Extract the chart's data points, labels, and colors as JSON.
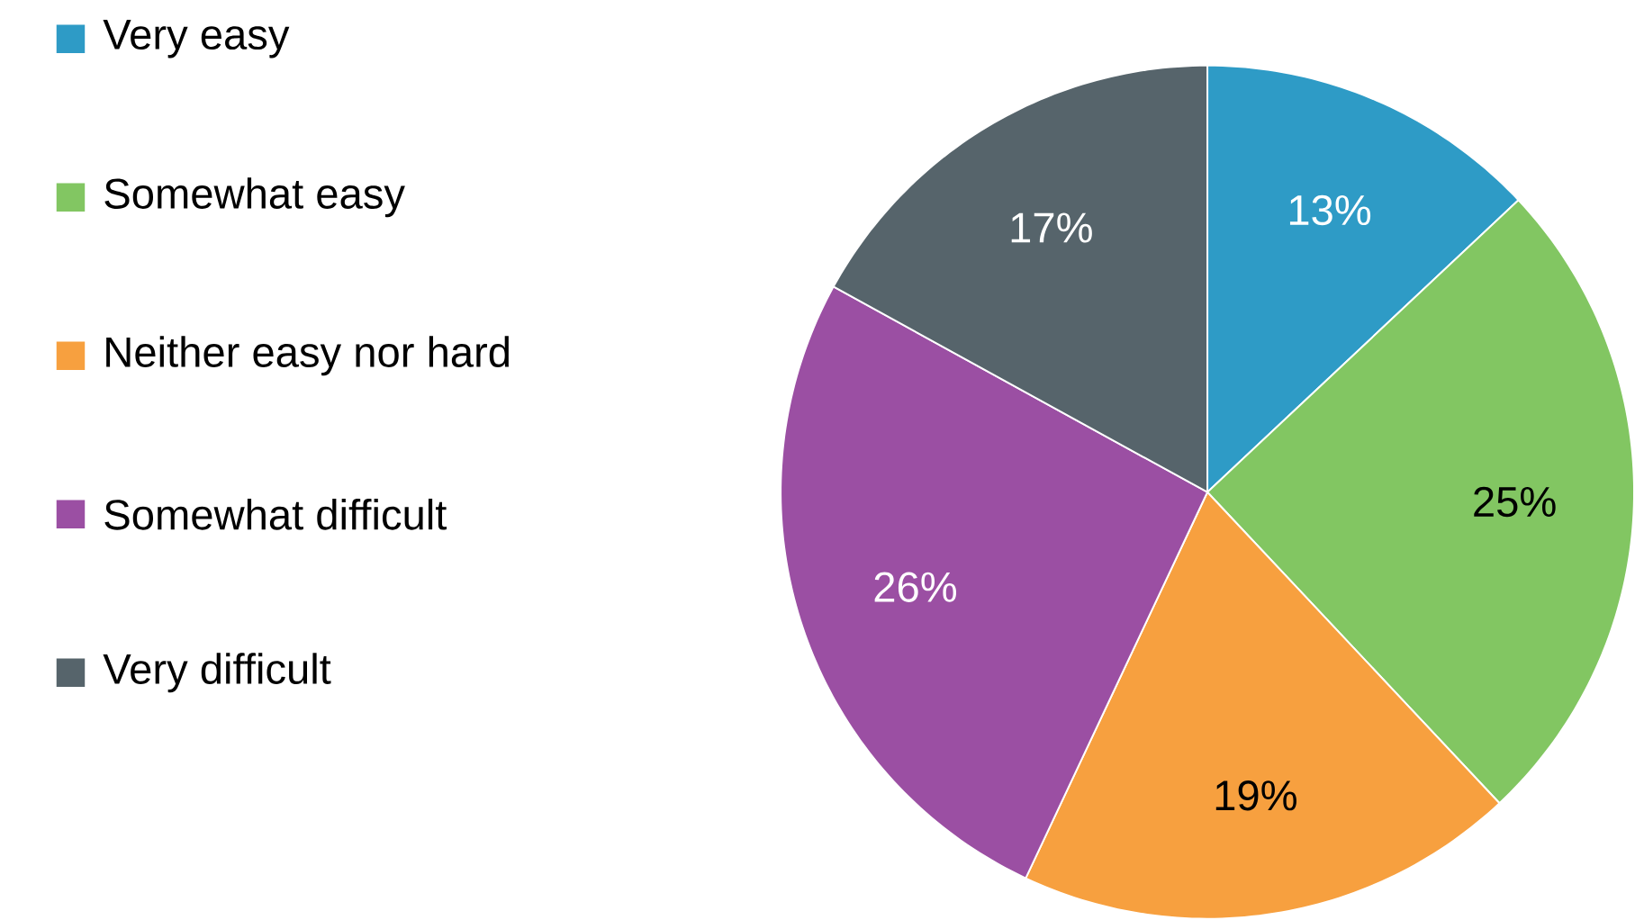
{
  "chart_data": {
    "type": "pie",
    "categories": [
      "Very easy",
      "Somewhat easy",
      "Neither easy nor hard",
      "Somewhat difficult",
      "Very difficult"
    ],
    "values": [
      13,
      25,
      19,
      26,
      17
    ],
    "colors": [
      "#2e9bc6",
      "#82c662",
      "#f7a03f",
      "#9b4fa3",
      "#56646b"
    ],
    "value_labels": [
      "13%",
      "25%",
      "19%",
      "26%",
      "17%"
    ],
    "legend": "left"
  }
}
